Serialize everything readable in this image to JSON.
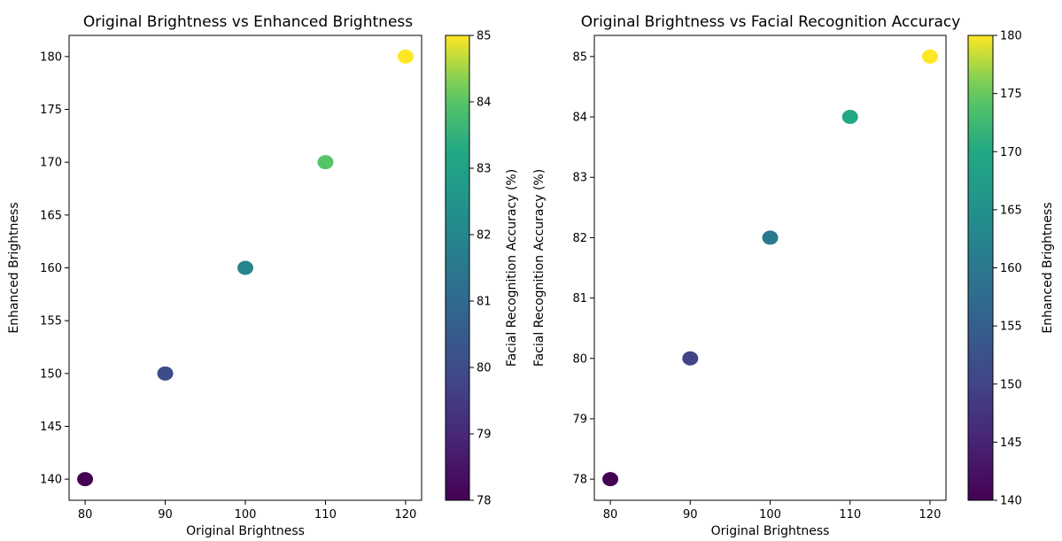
{
  "chart_data": [
    {
      "type": "scatter",
      "title": "Original Brightness vs Enhanced Brightness",
      "xlabel": "Original Brightness",
      "ylabel": "Enhanced Brightness",
      "x": [
        80,
        90,
        100,
        110,
        120
      ],
      "y": [
        140,
        150,
        160,
        170,
        180
      ],
      "color_values": [
        78,
        80,
        82,
        84,
        85
      ],
      "colormap": "viridis",
      "colorbar_label": "Facial Recognition Accuracy (%)",
      "colorbar_range": [
        78,
        85
      ],
      "colorbar_ticks": [
        78,
        79,
        80,
        81,
        82,
        83,
        84,
        85
      ],
      "xlim": [
        78,
        122
      ],
      "ylim": [
        138,
        182
      ],
      "xticks": [
        80,
        90,
        100,
        110,
        120
      ],
      "yticks": [
        140,
        145,
        150,
        155,
        160,
        165,
        170,
        175,
        180
      ],
      "grid": false
    },
    {
      "type": "scatter",
      "title": "Original Brightness vs Facial Recognition Accuracy",
      "xlabel": "Original Brightness",
      "ylabel": "Facial Recognition Accuracy (%)",
      "x": [
        80,
        90,
        100,
        110,
        120
      ],
      "y": [
        78,
        80,
        82,
        84,
        85
      ],
      "color_values": [
        140,
        150,
        160,
        170,
        180
      ],
      "colormap": "viridis",
      "colorbar_label": "Enhanced Brightness",
      "colorbar_range": [
        140,
        180
      ],
      "colorbar_ticks": [
        140,
        145,
        150,
        155,
        160,
        165,
        170,
        175,
        180
      ],
      "xlim": [
        78,
        122
      ],
      "ylim": [
        77.65,
        85.35
      ],
      "xticks": [
        80,
        90,
        100,
        110,
        120
      ],
      "yticks": [
        78,
        79,
        80,
        81,
        82,
        83,
        84,
        85
      ],
      "grid": false
    }
  ]
}
